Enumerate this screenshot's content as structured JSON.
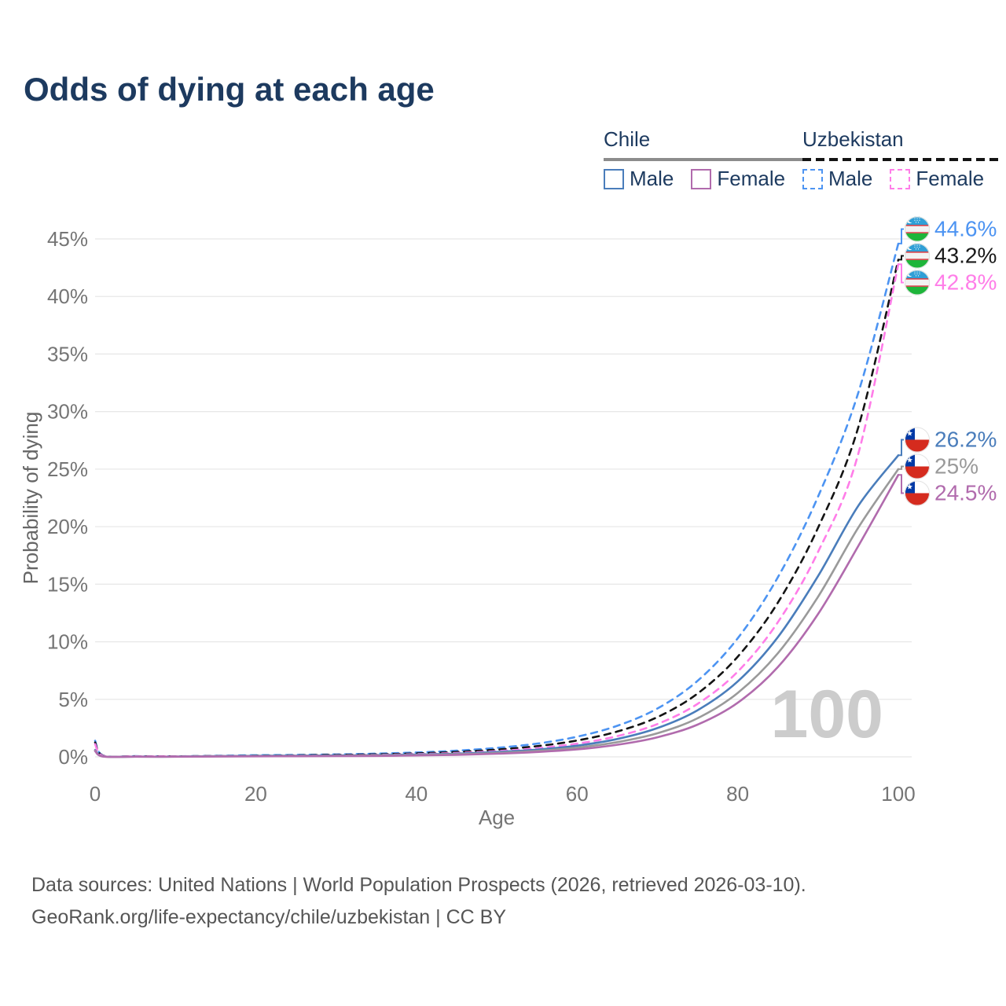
{
  "header": {
    "title": "Odds of dying at each age"
  },
  "legend": {
    "chile": {
      "title": "Chile",
      "male": "Male",
      "female": "Female"
    },
    "uzbekistan": {
      "title": "Uzbekistan",
      "male": "Male",
      "female": "Female"
    }
  },
  "chart_data": {
    "type": "line",
    "title": "Odds of dying at each age",
    "xlabel": "Age",
    "ylabel": "Probability of dying",
    "xlim": [
      0,
      100
    ],
    "ylim": [
      0,
      45
    ],
    "xticks": [
      0,
      20,
      40,
      60,
      80,
      100
    ],
    "yticks": [
      0,
      5,
      10,
      15,
      20,
      25,
      30,
      35,
      40,
      45
    ],
    "ytick_suffix": "%",
    "grid": true,
    "watermark": "100",
    "ages": [
      0,
      1,
      5,
      10,
      15,
      20,
      25,
      30,
      35,
      40,
      45,
      50,
      55,
      60,
      65,
      70,
      75,
      80,
      85,
      90,
      95,
      100
    ],
    "series": [
      {
        "id": "uzbekistan-male",
        "country": "Uzbekistan",
        "sex": "Male",
        "color": "#4d94f2",
        "dashed": true,
        "end_label": "44.6%",
        "label_color": "#4d94f2",
        "values": [
          1.4,
          0.12,
          0.06,
          0.05,
          0.09,
          0.14,
          0.17,
          0.21,
          0.28,
          0.38,
          0.54,
          0.78,
          1.15,
          1.75,
          2.7,
          4.2,
          6.6,
          10.3,
          15.6,
          22.6,
          31.6,
          44.6
        ]
      },
      {
        "id": "uzbekistan-combined",
        "country": "Uzbekistan",
        "sex": "Both",
        "color": "#141414",
        "dashed": true,
        "end_label": "43.2%",
        "label_color": "#1a1a1a",
        "values": [
          1.25,
          0.1,
          0.05,
          0.045,
          0.07,
          0.1,
          0.13,
          0.17,
          0.22,
          0.3,
          0.43,
          0.63,
          0.93,
          1.42,
          2.2,
          3.45,
          5.5,
          8.7,
          13.4,
          19.9,
          28.6,
          43.2
        ]
      },
      {
        "id": "uzbekistan-female",
        "country": "Uzbekistan",
        "sex": "Female",
        "color": "#ff7de8",
        "dashed": true,
        "end_label": "42.8%",
        "label_color": "#ff7de8",
        "values": [
          1.1,
          0.09,
          0.045,
          0.04,
          0.06,
          0.08,
          0.1,
          0.13,
          0.17,
          0.24,
          0.34,
          0.5,
          0.75,
          1.15,
          1.8,
          2.85,
          4.6,
          7.4,
          11.7,
          17.8,
          26.3,
          42.8
        ]
      },
      {
        "id": "chile-male",
        "country": "Chile",
        "sex": "Male",
        "color": "#4a7dbb",
        "dashed": false,
        "end_label": "26.2%",
        "label_color": "#4a7dbb",
        "values": [
          0.6,
          0.04,
          0.02,
          0.02,
          0.06,
          0.09,
          0.1,
          0.12,
          0.15,
          0.2,
          0.28,
          0.42,
          0.63,
          0.97,
          1.55,
          2.5,
          4.05,
          6.55,
          10.4,
          15.7,
          21.8,
          26.2
        ]
      },
      {
        "id": "chile-combined",
        "country": "Chile",
        "sex": "Both",
        "color": "#9a9a9a",
        "dashed": false,
        "end_label": "25%",
        "label_color": "#9a9a9a",
        "values": [
          0.55,
          0.035,
          0.018,
          0.018,
          0.045,
          0.065,
          0.075,
          0.09,
          0.12,
          0.16,
          0.23,
          0.34,
          0.52,
          0.8,
          1.28,
          2.05,
          3.35,
          5.55,
          9.0,
          13.9,
          19.9,
          25.0
        ]
      },
      {
        "id": "chile-female",
        "country": "Chile",
        "sex": "Female",
        "color": "#b16bad",
        "dashed": false,
        "end_label": "24.5%",
        "label_color": "#b16bad",
        "values": [
          0.5,
          0.03,
          0.016,
          0.015,
          0.03,
          0.045,
          0.055,
          0.065,
          0.085,
          0.12,
          0.18,
          0.27,
          0.42,
          0.65,
          1.05,
          1.7,
          2.8,
          4.7,
          7.8,
          12.4,
          18.3,
          24.5
        ]
      }
    ]
  },
  "footer": {
    "line1": "Data sources: United Nations | World Population Prospects (2026, retrieved 2026-03-10).",
    "line2": "GeoRank.org/life-expectancy/chile/uzbekistan | CC BY"
  }
}
